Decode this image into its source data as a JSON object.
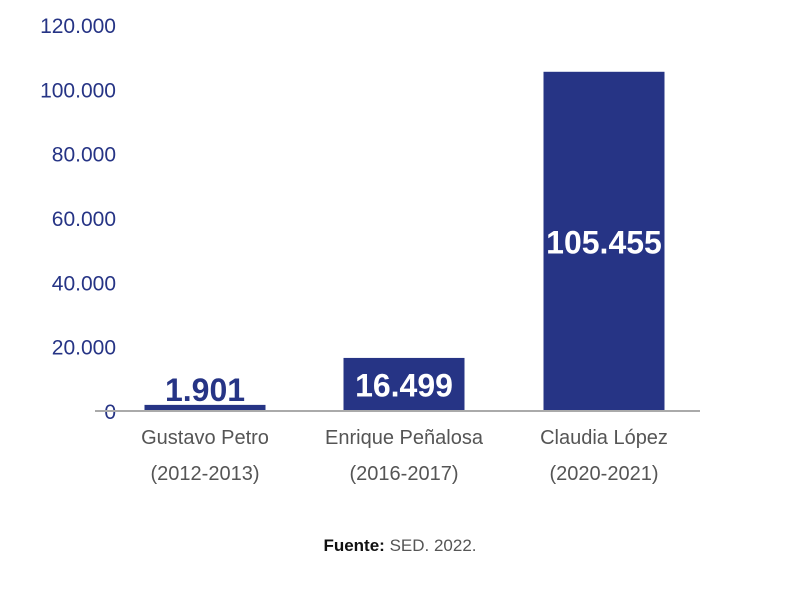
{
  "chart_data": {
    "type": "bar",
    "categories": [
      [
        "Gustavo Petro",
        "(2012-2013)"
      ],
      [
        "Enrique Peñalosa",
        "(2016-2017)"
      ],
      [
        "Claudia López",
        "(2020-2021)"
      ]
    ],
    "values": [
      1901,
      16499,
      105455
    ],
    "data_labels": [
      "1.901",
      "16.499",
      "105.455"
    ],
    "yticks": [
      0,
      20000,
      40000,
      60000,
      80000,
      100000,
      120000
    ],
    "ytick_labels": [
      "0",
      "20.000",
      "40.000",
      "60.000",
      "80.000",
      "100.000",
      "120.000"
    ],
    "ylim": [
      0,
      120000
    ],
    "grid": false,
    "colors": {
      "bar": "#263485",
      "label_inside": "#ffffff",
      "label_outside": "#263485",
      "axis": "#aaaaaa"
    }
  },
  "source": {
    "label": "Fuente:",
    "text": "SED. 2022."
  }
}
